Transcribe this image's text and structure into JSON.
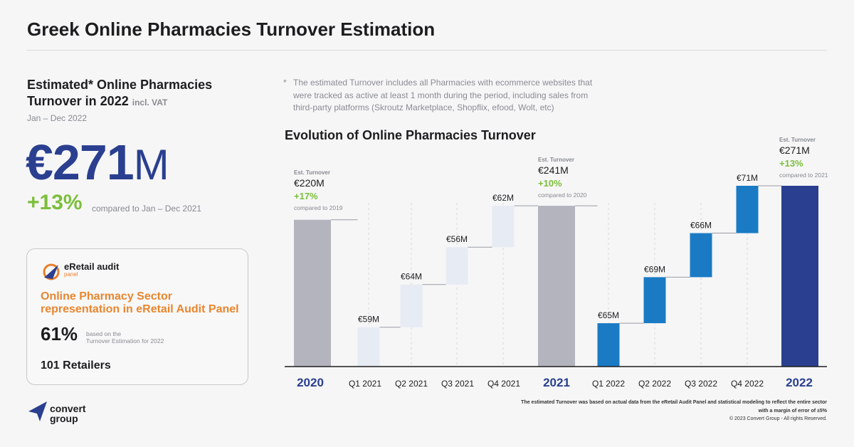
{
  "title": "Greek Online Pharmacies Turnover Estimation",
  "kpi": {
    "heading": "Estimated* Online Pharmacies Turnover in 2022",
    "heading_suffix": "incl. VAT",
    "period": "Jan – Dec 2022",
    "value": "€271",
    "value_unit": "M",
    "growth": "+13%",
    "growth_compare": "compared to Jan – Dec 2021"
  },
  "panel": {
    "logo_name": "eRetail audit",
    "logo_sub": "panel",
    "heading": "Online Pharmacy Sector representation in eRetail Audit Panel",
    "pct": "61%",
    "pct_note_1": "based on the",
    "pct_note_2": "Turnover Estimation for 2022",
    "retailers": "101 Retailers"
  },
  "note": {
    "star": "*",
    "text": "The estimated Turnover includes all Pharmacies with ecommerce websites that were tracked as active at least 1 month during the period, including sales from third-party platforms (Skroutz Marketplace, Shopflix, efood, Wolt, etc)"
  },
  "chart_data": {
    "type": "bar",
    "subtype": "waterfall",
    "title": "Evolution of Online Pharmacies Turnover",
    "unit": "€M",
    "categories": [
      "2020",
      "Q1 2021",
      "Q2 2021",
      "Q3 2021",
      "Q4 2021",
      "2021",
      "Q1 2022",
      "Q2 2022",
      "Q3 2022",
      "Q4 2022",
      "2022"
    ],
    "bars": [
      {
        "category": "2020",
        "kind": "total",
        "value": 220,
        "label": "",
        "color": "#b3b4bd"
      },
      {
        "category": "Q1 2021",
        "kind": "quarter",
        "value": 59,
        "label": "€59M",
        "color": "#e7ebf3"
      },
      {
        "category": "Q2 2021",
        "kind": "quarter",
        "value": 64,
        "label": "€64M",
        "color": "#e7ebf3"
      },
      {
        "category": "Q3 2021",
        "kind": "quarter",
        "value": 56,
        "label": "€56M",
        "color": "#e7ebf3"
      },
      {
        "category": "Q4 2021",
        "kind": "quarter",
        "value": 62,
        "label": "€62M",
        "color": "#e7ebf3"
      },
      {
        "category": "2021",
        "kind": "total",
        "value": 241,
        "label": "",
        "color": "#b3b4bd"
      },
      {
        "category": "Q1 2022",
        "kind": "quarter",
        "value": 65,
        "label": "€65M",
        "color": "#1a7bc4"
      },
      {
        "category": "Q2 2022",
        "kind": "quarter",
        "value": 69,
        "label": "€69M",
        "color": "#1a7bc4"
      },
      {
        "category": "Q3 2022",
        "kind": "quarter",
        "value": 66,
        "label": "€66M",
        "color": "#1a7bc4"
      },
      {
        "category": "Q4 2022",
        "kind": "quarter",
        "value": 71,
        "label": "€71M",
        "color": "#1a7bc4"
      },
      {
        "category": "2022",
        "kind": "total",
        "value": 271,
        "label": "",
        "color": "#2a3f8f"
      }
    ],
    "total_annotations": [
      {
        "category": "2020",
        "caption": "Est. Turnover",
        "value": "€220M",
        "growth": "+17%",
        "compare": "compared to 2019"
      },
      {
        "category": "2021",
        "caption": "Est. Turnover",
        "value": "€241M",
        "growth": "+10%",
        "compare": "compared to 2020"
      },
      {
        "category": "2022",
        "caption": "Est. Turnover",
        "value": "€271M",
        "growth": "+13%",
        "compare": "compared to 2021"
      }
    ],
    "ylim": [
      0,
      271
    ]
  },
  "footer": {
    "note": "The estimated Turnover was based on actual data from the eRetail Audit Panel and statistical modeling to reflect the entire sector with a margin of error of ±5%",
    "copyright": "© 2023 Convert Group - All rights Reserved.",
    "logo_line1": "convert",
    "logo_line2": "group"
  },
  "colors": {
    "accent_dark": "#2a3f8f",
    "accent_blue": "#1a7bc4",
    "growth_green": "#7cbf3a",
    "panel_orange": "#e8862e",
    "total_grey": "#b3b4bd"
  }
}
